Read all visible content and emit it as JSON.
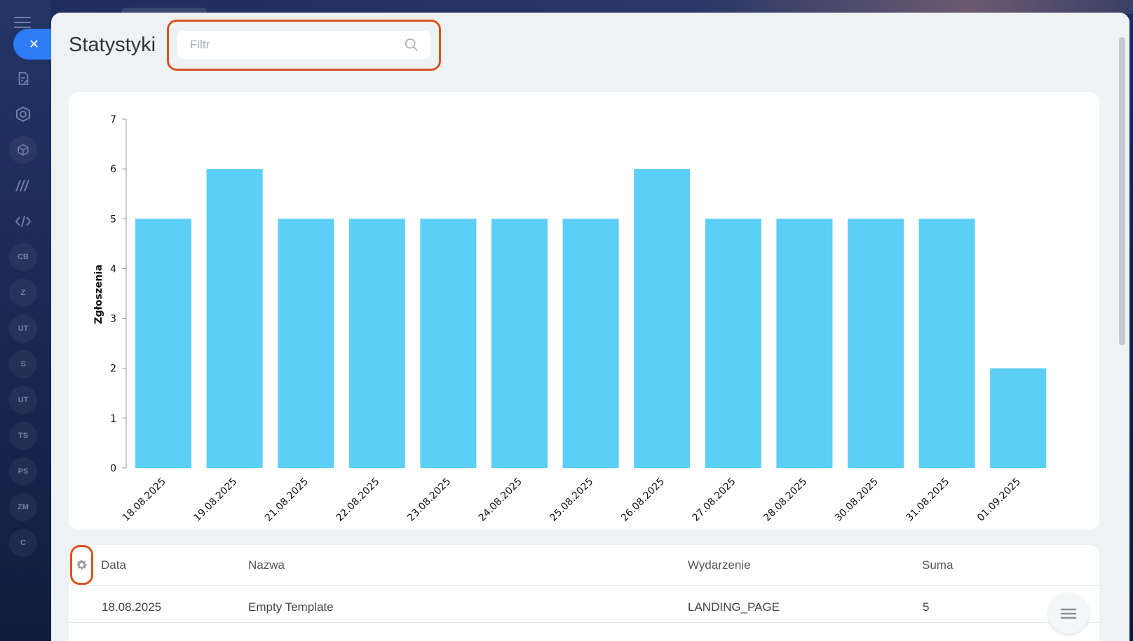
{
  "sidebar": {
    "items": [
      {
        "icon": "document-edit-icon"
      },
      {
        "icon": "hexagon-icon"
      },
      {
        "icon": "box-icon"
      },
      {
        "icon": "stripes-icon"
      },
      {
        "icon": "code-icon"
      },
      {
        "label": "CB"
      },
      {
        "label": "Z"
      },
      {
        "label": "UT"
      },
      {
        "label": "S"
      },
      {
        "label": "UT"
      },
      {
        "label": "TS"
      },
      {
        "label": "PS"
      },
      {
        "label": "ZM"
      },
      {
        "label": "C"
      }
    ]
  },
  "page": {
    "title": "Statystyki"
  },
  "filter": {
    "placeholder": "Filtr",
    "value": ""
  },
  "chart_data": {
    "type": "bar",
    "categories": [
      "18.08.2025",
      "19.08.2025",
      "21.08.2025",
      "22.08.2025",
      "23.08.2025",
      "24.08.2025",
      "25.08.2025",
      "26.08.2025",
      "27.08.2025",
      "28.08.2025",
      "30.08.2025",
      "31.08.2025",
      "01.09.2025"
    ],
    "values": [
      5,
      6,
      5,
      5,
      5,
      5,
      5,
      6,
      5,
      5,
      5,
      5,
      2
    ],
    "ylabel": "Zgłoszenia",
    "xlabel": "",
    "ylim": [
      0,
      7
    ],
    "yticks": [
      0,
      1,
      2,
      3,
      4,
      5,
      6,
      7
    ],
    "color": "#5bcff6",
    "grid": false
  },
  "table": {
    "headers": {
      "date": "Data",
      "name": "Nazwa",
      "event": "Wydarzenie",
      "sum": "Suma"
    },
    "rows": [
      {
        "date": "18.08.2025",
        "name": "Empty Template",
        "event": "LANDING_PAGE",
        "sum": "5"
      }
    ]
  }
}
